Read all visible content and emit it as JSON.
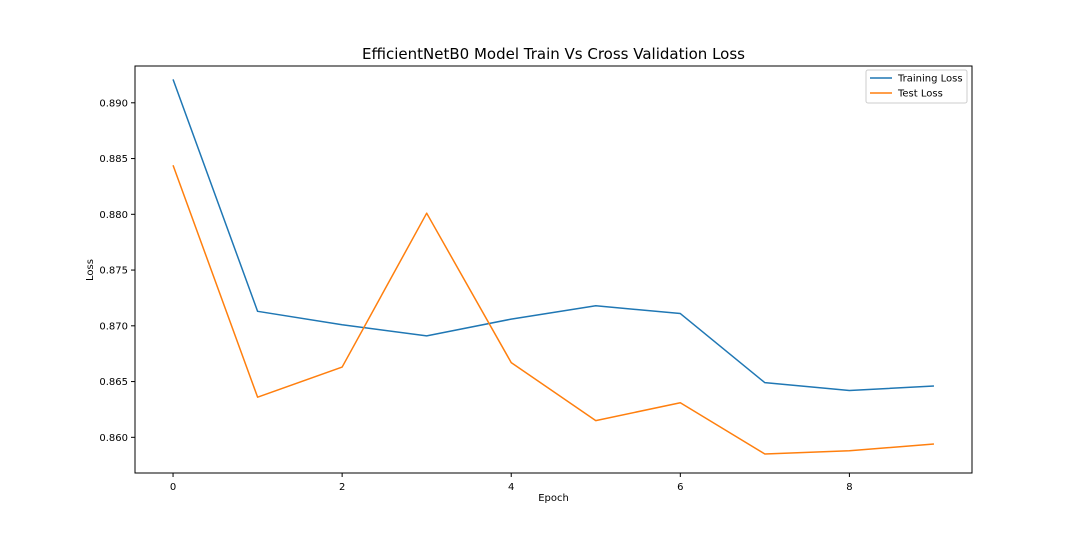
{
  "chart_data": {
    "type": "line",
    "title": "EfficientNetB0 Model Train Vs Cross Validation Loss",
    "xlabel": "Epoch",
    "ylabel": "Loss",
    "x": [
      0,
      1,
      2,
      3,
      4,
      5,
      6,
      7,
      8,
      9
    ],
    "xlim": [
      -0.45,
      9.45
    ],
    "ylim": [
      0.8568,
      0.8933
    ],
    "xticks": [
      0,
      2,
      4,
      6,
      8
    ],
    "yticks": [
      0.86,
      0.865,
      0.87,
      0.875,
      0.88,
      0.885,
      0.89
    ],
    "xtick_labels": [
      "0",
      "2",
      "4",
      "6",
      "8"
    ],
    "ytick_labels": [
      "0.860",
      "0.865",
      "0.870",
      "0.875",
      "0.880",
      "0.885",
      "0.890"
    ],
    "grid": false,
    "legend_position": "top-right",
    "series": [
      {
        "name": "Training Loss",
        "color": "#1f77b4",
        "values": [
          0.8921,
          0.8713,
          0.8701,
          0.8691,
          0.8706,
          0.8718,
          0.8711,
          0.8649,
          0.8642,
          0.8646
        ]
      },
      {
        "name": "Test Loss",
        "color": "#ff7f0e",
        "values": [
          0.8844,
          0.8636,
          0.8663,
          0.8801,
          0.8667,
          0.8615,
          0.8631,
          0.8585,
          0.8588,
          0.8594
        ]
      }
    ]
  }
}
